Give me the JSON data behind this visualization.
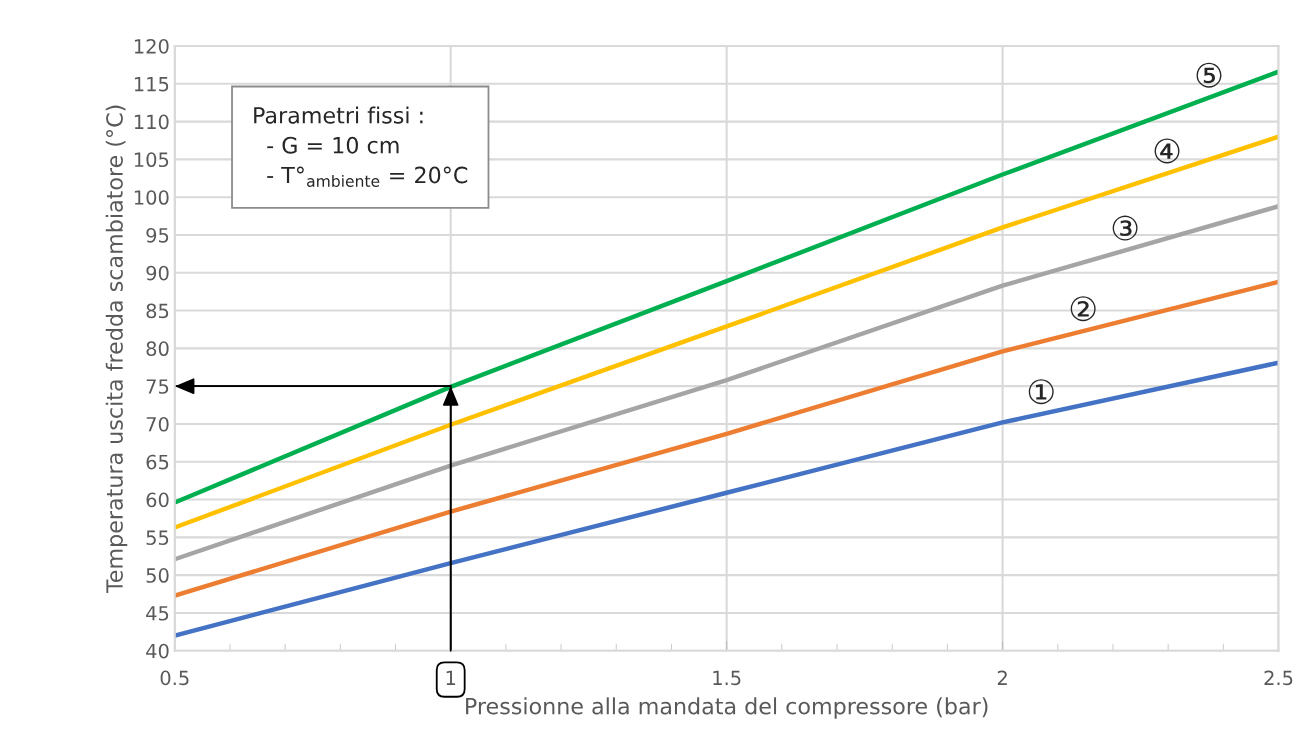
{
  "chart_data": {
    "type": "line",
    "xlabel": "Pressionne alla mandata del compressore (bar)",
    "ylabel": "Temperatura uscita fredda scambiatore (°C)",
    "x": [
      0.5,
      1,
      1.5,
      2,
      2.5
    ],
    "series": [
      {
        "color": "#4472c4",
        "values": [
          42.0,
          51.6,
          60.9,
          70.2,
          78.1
        ]
      },
      {
        "color": "#ed7d31",
        "values": [
          47.3,
          58.4,
          68.7,
          79.6,
          88.8
        ]
      },
      {
        "color": "#a5a5a5",
        "values": [
          52.1,
          64.5,
          75.8,
          88.3,
          98.8
        ]
      },
      {
        "color": "#ffc000",
        "values": [
          56.3,
          69.9,
          82.9,
          96.0,
          108.0
        ]
      },
      {
        "color": "#00b050",
        "values": [
          59.6,
          74.9,
          88.9,
          103.0,
          116.6
        ]
      }
    ],
    "xlim": [
      0.5,
      2.5
    ],
    "xticks": [
      0.5,
      {
        "value": 0.6,
        "label": null
      },
      {
        "value": 0.7,
        "label": null
      },
      {
        "value": 0.8,
        "label": null
      },
      {
        "value": 0.9,
        "label": null
      },
      1,
      {
        "value": 1.1,
        "label": null
      },
      {
        "value": 1.2,
        "label": null
      },
      {
        "value": 1.3,
        "label": null
      },
      {
        "value": 1.4,
        "label": null
      },
      1.5,
      {
        "value": 1.6,
        "label": null
      },
      {
        "value": 1.7,
        "label": null
      },
      {
        "value": 1.8,
        "label": null
      },
      {
        "value": 1.9,
        "label": null
      },
      2,
      {
        "value": 2.1,
        "label": null
      },
      {
        "value": 2.2,
        "label": null
      },
      {
        "value": 2.3,
        "label": null
      },
      {
        "value": 2.4,
        "label": null
      },
      2.5
    ],
    "ylim": [
      40,
      120
    ],
    "yticks": [
      40,
      45,
      50,
      55,
      60,
      65,
      70,
      75,
      80,
      85,
      90,
      95,
      100,
      105,
      110,
      115,
      120
    ],
    "grid": true,
    "legend": false,
    "marker": "none",
    "line_style": "solid",
    "annotations": [
      "Parametri fissi :\n  - G = 10 cm\n  - T°$_{ambiente}$ = 20°C",
      "①",
      "②",
      "③",
      "④",
      "⑤"
    ],
    "ref_lines": [
      {
        "axis": "x",
        "value": 1,
        "color": "#000000",
        "line_style": "solid"
      },
      {
        "axis": "y",
        "value": 75,
        "color": "#000000",
        "line_style": "solid"
      }
    ]
  }
}
